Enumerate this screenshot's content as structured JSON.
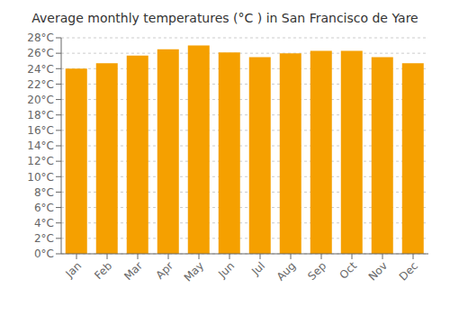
{
  "chart_data": {
    "type": "bar",
    "title": "Average monthly temperatures (°C ) in San Francisco de Yare",
    "categories": [
      "Jan",
      "Feb",
      "Mar",
      "Apr",
      "May",
      "Jun",
      "Jul",
      "Aug",
      "Sep",
      "Oct",
      "Nov",
      "Dec"
    ],
    "values": [
      24.0,
      24.7,
      25.7,
      26.5,
      27.0,
      26.1,
      25.5,
      26.0,
      26.3,
      26.3,
      25.5,
      24.7
    ],
    "color": "#F5A000",
    "ylim": [
      0,
      28
    ],
    "yticks": [
      {
        "value": 0,
        "label": "0°C"
      },
      {
        "value": 2,
        "label": "2°C"
      },
      {
        "value": 4,
        "label": "4°C"
      },
      {
        "value": 6,
        "label": "6°C"
      },
      {
        "value": 8,
        "label": "8°C"
      },
      {
        "value": 10,
        "label": "10°C"
      },
      {
        "value": 12,
        "label": "12°C"
      },
      {
        "value": 14,
        "label": "14°C"
      },
      {
        "value": 16,
        "label": "16°C"
      },
      {
        "value": 18,
        "label": "18°C"
      },
      {
        "value": 20,
        "label": "20°C"
      },
      {
        "value": 22,
        "label": "22°C"
      },
      {
        "value": 24,
        "label": "24°C"
      },
      {
        "value": 26,
        "label": "26°C"
      },
      {
        "value": 28,
        "label": "28°C"
      }
    ],
    "grid": true
  }
}
